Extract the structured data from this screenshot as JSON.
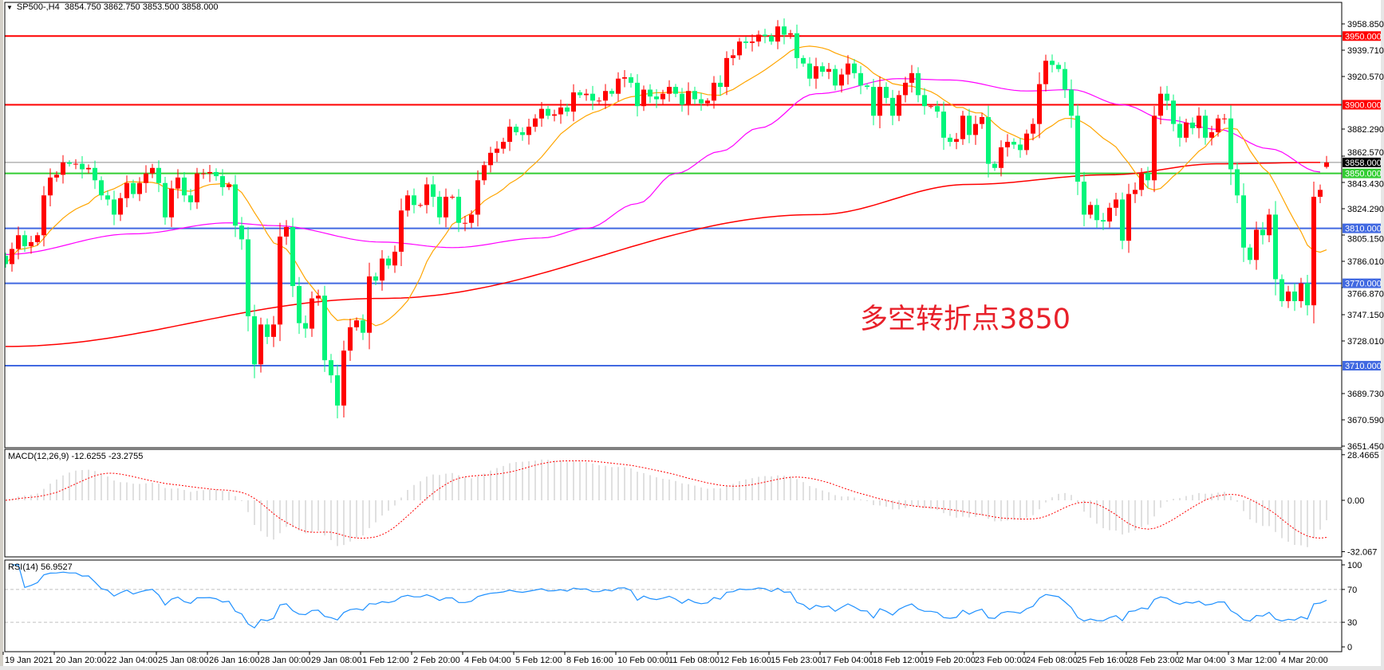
{
  "header": {
    "symbol": "SP500-,H4",
    "ohlc": "3854.750 3862.750 3853.500 3858.000",
    "menu_icon": "triangle-down-icon"
  },
  "annotation": "多空转折点3850",
  "colors": {
    "up_candle": "#ff0000",
    "down_candle": "#00f57a",
    "ma_fast": "#ffa500",
    "ma_mid": "#ff00ff",
    "ma_slow": "#ff0000",
    "macd_hist": "#c0c0c0",
    "macd_signal": "#ff0000",
    "rsi_line": "#1e90ff",
    "current_price_line": "#8c8c8c"
  },
  "chart_data": {
    "type": "candlestick",
    "symbol": "SP500-",
    "timeframe": "H4",
    "ylim": [
      3651.45,
      3958.85
    ],
    "last_bar": {
      "open": 3854.75,
      "high": 3862.75,
      "low": 3853.5,
      "close": 3858.0
    },
    "closes": [
      3784,
      3795,
      3805,
      3797,
      3800,
      3805,
      3834,
      3847,
      3849,
      3858,
      3857,
      3857,
      3853,
      3854,
      3845,
      3834,
      3831,
      3820,
      3832,
      3843,
      3835,
      3843,
      3850,
      3854,
      3843,
      3818,
      3839,
      3847,
      3834,
      3829,
      3850,
      3850,
      3851,
      3848,
      3840,
      3842,
      3812,
      3802,
      3746,
      3711,
      3740,
      3731,
      3740,
      3804,
      3811,
      3768,
      3741,
      3737,
      3759,
      3761,
      3714,
      3703,
      3681,
      3721,
      3738,
      3743,
      3734,
      3775,
      3772,
      3788,
      3783,
      3793,
      3823,
      3834,
      3827,
      3827,
      3842,
      3833,
      3818,
      3833,
      3833,
      3814,
      3814,
      3820,
      3845,
      3856,
      3865,
      3868,
      3873,
      3884,
      3880,
      3878,
      3884,
      3890,
      3897,
      3892,
      3893,
      3898,
      3895,
      3909,
      3907,
      3908,
      3903,
      3903,
      3910,
      3908,
      3919,
      3920,
      3916,
      3899,
      3911,
      3906,
      3904,
      3908,
      3913,
      3908,
      3900,
      3910,
      3904,
      3901,
      3903,
      3916,
      3913,
      3934,
      3936,
      3946,
      3945,
      3946,
      3951,
      3950,
      3946,
      3957,
      3951,
      3952,
      3934,
      3930,
      3919,
      3928,
      3924,
      3926,
      3914,
      3922,
      3930,
      3923,
      3914,
      3913,
      3892,
      3913,
      3905,
      3892,
      3907,
      3916,
      3923,
      3907,
      3899,
      3899,
      3895,
      3876,
      3873,
      3875,
      3892,
      3878,
      3886,
      3891,
      3857,
      3854,
      3869,
      3873,
      3871,
      3867,
      3879,
      3886,
      3915,
      3932,
      3929,
      3926,
      3911,
      3892,
      3844,
      3820,
      3827,
      3816,
      3815,
      3825,
      3831,
      3801,
      3835,
      3838,
      3850,
      3845,
      3892,
      3908,
      3903,
      3886,
      3876,
      3887,
      3883,
      3892,
      3876,
      3880,
      3890,
      3890,
      3853,
      3834,
      3796,
      3787,
      3809,
      3805,
      3820,
      3773,
      3757,
      3764,
      3757,
      3770,
      3754,
      3833,
      3838,
      3858
    ],
    "price_ticks": [
      "3958.850",
      "3939.710",
      "3920.570",
      "3882.290",
      "3862.570",
      "3843.430",
      "3824.290",
      "3805.150",
      "3786.010",
      "3766.870",
      "3747.150",
      "3728.010",
      "3689.730",
      "3670.590",
      "3651.450"
    ],
    "time_ticks": [
      "19 Jan 2021",
      "20 Jan 20:00",
      "22 Jan 04:00",
      "25 Jan 08:00",
      "26 Jan 16:00",
      "28 Jan 00:00",
      "29 Jan 08:00",
      "1 Feb 12:00",
      "2 Feb 20:00",
      "4 Feb 04:00",
      "5 Feb 12:00",
      "8 Feb 16:00",
      "10 Feb 00:00",
      "11 Feb 08:00",
      "12 Feb 16:00",
      "15 Feb 23:00",
      "17 Feb 04:00",
      "18 Feb 12:00",
      "19 Feb 20:00",
      "23 Feb 00:00",
      "24 Feb 08:00",
      "25 Feb 16:00",
      "28 Feb 23:00",
      "2 Mar 04:00",
      "3 Mar 12:00",
      "4 Mar 20:00"
    ],
    "levels": [
      {
        "value": 3950,
        "label": "3950.000",
        "color": "#ff0000"
      },
      {
        "value": 3900,
        "label": "3900.000",
        "color": "#ff0000"
      },
      {
        "value": 3850,
        "label": "3850.000",
        "color": "#32cd32"
      },
      {
        "value": 3810,
        "label": "3810.000",
        "color": "#4169e1"
      },
      {
        "value": 3770,
        "label": "3770.000",
        "color": "#4169e1"
      },
      {
        "value": 3710,
        "label": "3710.000",
        "color": "#4169e1"
      }
    ],
    "current_price": {
      "value": 3858,
      "label": "3858.000"
    },
    "ma_mid_points": [
      [
        0,
        3791
      ],
      [
        20,
        3806
      ],
      [
        35,
        3814
      ],
      [
        42,
        3812
      ],
      [
        59,
        3800
      ],
      [
        70,
        3796
      ],
      [
        84,
        3803
      ],
      [
        91,
        3810
      ],
      [
        99,
        3828
      ],
      [
        105,
        3850
      ],
      [
        112,
        3866
      ],
      [
        118,
        3883
      ],
      [
        127,
        3908
      ],
      [
        140,
        3919
      ],
      [
        148,
        3918
      ],
      [
        160,
        3910
      ],
      [
        167,
        3911
      ],
      [
        175,
        3900
      ],
      [
        182,
        3889
      ],
      [
        190,
        3882
      ],
      [
        198,
        3868
      ],
      [
        206,
        3851
      ]
    ],
    "ma_slow_points": [
      [
        0,
        3724
      ],
      [
        59,
        3759
      ],
      [
        127,
        3820
      ],
      [
        151,
        3842
      ],
      [
        173,
        3849
      ],
      [
        190,
        3857
      ],
      [
        206,
        3858
      ]
    ],
    "macd": {
      "label": "MACD(12,26,9) -12.6255 -23.2755",
      "ylim": [
        -32.067,
        28.4665
      ],
      "ticks": [
        "28.4665",
        "0.00",
        "-32.067"
      ],
      "last_main": -12.6255,
      "last_signal": -23.2755
    },
    "rsi": {
      "label": "RSI(14) 56.9527",
      "ylim": [
        0,
        100
      ],
      "ticks": [
        "100",
        "70",
        "30",
        "0"
      ],
      "levels": [
        70,
        30
      ],
      "last": 56.9527
    }
  }
}
